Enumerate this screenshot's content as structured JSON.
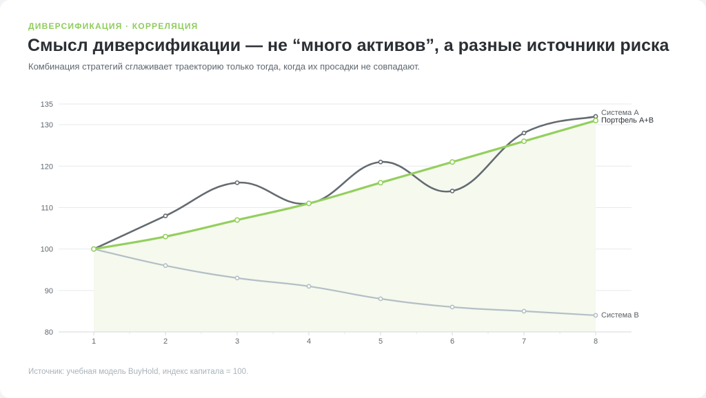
{
  "header": {
    "eyebrow": "ДИВЕРСИФИКАЦИЯ · КОРРЕЛЯЦИЯ",
    "title": "Смысл диверсификации — не “много активов”, а разные источники риска",
    "subtitle": "Комбинация стратегий сглаживает траекторию только тогда, когда их просадки не совпадают."
  },
  "footer": {
    "source": "Источник: учебная модель BuyHold, индекс капитала = 100."
  },
  "colors": {
    "accent": "#8fcc5c",
    "system_a": "#646b71",
    "system_b": "#b3bfc5",
    "portfolio": "#94cf5e",
    "area_fill": "#f5f9ee",
    "grid": "#e6e9ec",
    "tick_text": "#5f676e"
  },
  "chart_data": {
    "type": "line",
    "x": [
      1,
      2,
      3,
      4,
      5,
      6,
      7,
      8
    ],
    "ylim": [
      80,
      135
    ],
    "yticks": [
      80,
      90,
      100,
      110,
      120,
      130,
      135
    ],
    "grid": true,
    "legend": "end-of-line labels",
    "series": [
      {
        "key": "a",
        "name": "Система A",
        "values": [
          100,
          108,
          116,
          111,
          121,
          114,
          128,
          132
        ]
      },
      {
        "key": "b",
        "name": "Система B",
        "values": [
          100,
          96,
          93,
          91,
          88,
          86,
          85,
          84
        ]
      },
      {
        "key": "p",
        "name": "Портфель A+B",
        "values": [
          100,
          103,
          107,
          111,
          116,
          121,
          126,
          131
        ]
      }
    ]
  }
}
